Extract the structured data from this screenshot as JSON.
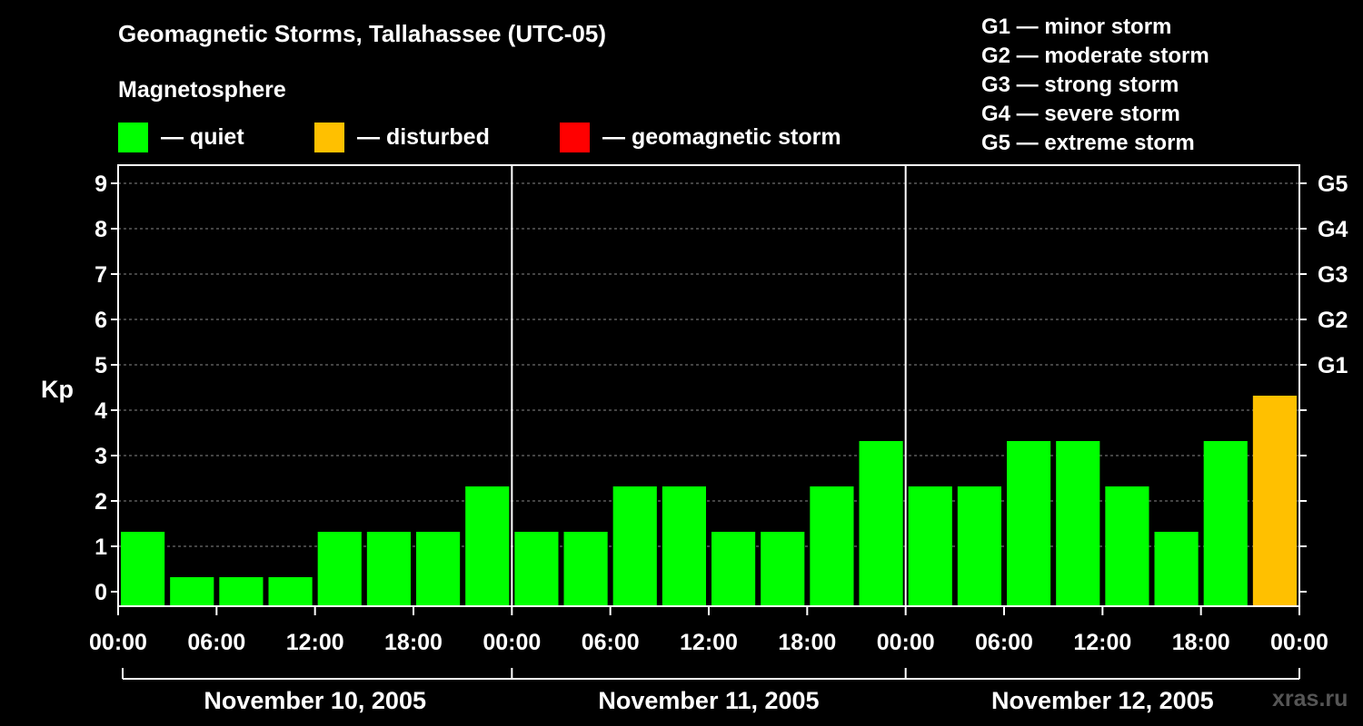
{
  "title": "Geomagnetic Storms, Tallahassee (UTC-05)",
  "subtitle": "Magnetosphere",
  "legend": [
    {
      "label": "— quiet",
      "color": "#00ff00"
    },
    {
      "label": "— disturbed",
      "color": "#ffc000"
    },
    {
      "label": "— geomagnetic storm",
      "color": "#ff0000"
    }
  ],
  "storm_scale": [
    "G1 — minor storm",
    "G2 — moderate storm",
    "G3 — strong storm",
    "G4 — severe storm",
    "G5 — extreme storm"
  ],
  "watermark": "xras.ru",
  "chart_data": {
    "type": "bar",
    "ylabel": "Kp",
    "ylim": [
      0,
      9
    ],
    "yticks": [
      "0",
      "1",
      "2",
      "3",
      "4",
      "5",
      "6",
      "7",
      "8",
      "9"
    ],
    "right_ticks": [
      {
        "kp": 5,
        "label": "G1"
      },
      {
        "kp": 6,
        "label": "G2"
      },
      {
        "kp": 7,
        "label": "G3"
      },
      {
        "kp": 8,
        "label": "G4"
      },
      {
        "kp": 9,
        "label": "G5"
      }
    ],
    "x_tick_labels": [
      "00:00",
      "06:00",
      "12:00",
      "18:00",
      "00:00",
      "06:00",
      "12:00",
      "18:00",
      "00:00",
      "06:00",
      "12:00",
      "18:00",
      "00:00"
    ],
    "days": [
      "November 10, 2005",
      "November 11, 2005",
      "November 12, 2005"
    ],
    "interval_hours": 3,
    "values": [
      1,
      0,
      0,
      0,
      1,
      1,
      1,
      2,
      1,
      1,
      2,
      2,
      1,
      1,
      2,
      3,
      2,
      2,
      3,
      3,
      2,
      1,
      3,
      4
    ],
    "grid": "dashed horizontal",
    "colors": {
      "quiet": "#00ff00",
      "disturbed": "#ffc000",
      "storm": "#ff0000"
    }
  }
}
